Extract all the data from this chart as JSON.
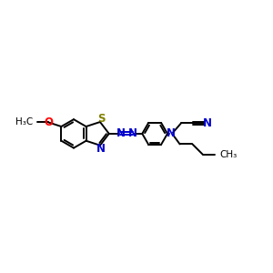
{
  "bg_color": "#ffffff",
  "bond_color": "#000000",
  "n_color": "#0000cd",
  "o_color": "#ff0000",
  "s_color": "#808000",
  "lw": 1.4,
  "figsize": [
    3.0,
    3.0
  ],
  "dpi": 100,
  "xlim": [
    0,
    10
  ],
  "ylim": [
    0,
    10
  ]
}
